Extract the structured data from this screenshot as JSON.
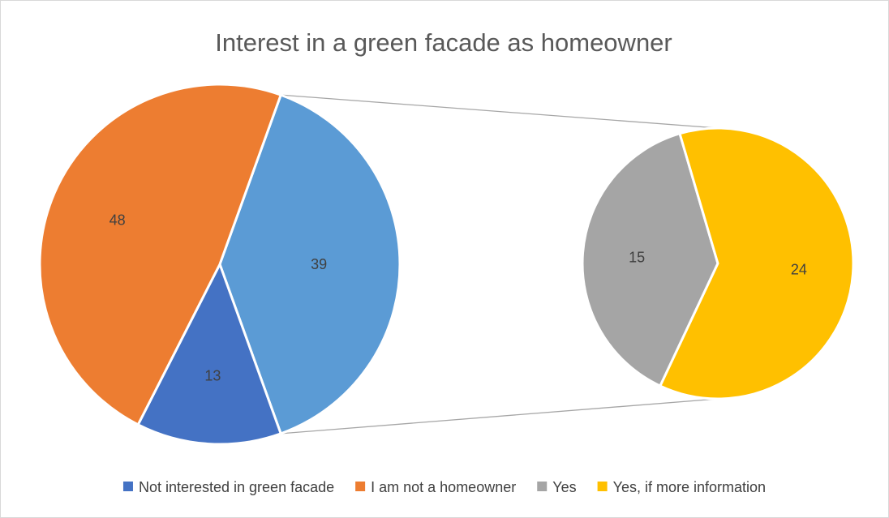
{
  "chart_data": {
    "type": "pie",
    "subtype": "pie-of-pie",
    "title": "Interest in a green facade as homeowner",
    "slices": [
      {
        "label": "Not interested in green facade",
        "value": 13,
        "color": "#4472c4",
        "chart": "main"
      },
      {
        "label": "I am not a homeowner",
        "value": 48,
        "color": "#ed7d31",
        "chart": "main"
      },
      {
        "label": "Yes",
        "value": 15,
        "color": "#a5a5a5",
        "chart": "secondary"
      },
      {
        "label": "Yes, if more information",
        "value": 24,
        "color": "#ffc000",
        "chart": "secondary"
      }
    ],
    "aggregate_slice": {
      "value": 39,
      "color": "#5b9bd5"
    },
    "legend_position": "bottom",
    "show_values": true
  },
  "colors": {
    "label_text": "#404040",
    "title_text": "#595959",
    "connector": "#a6a6a6"
  }
}
